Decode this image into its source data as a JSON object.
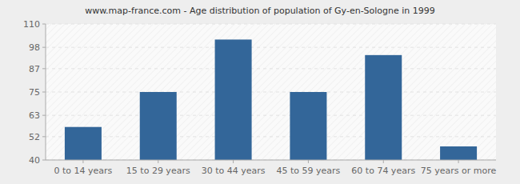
{
  "chart_data": {
    "type": "bar",
    "title": "www.map-france.com - Age distribution of population of Gy-en-Sologne in 1999",
    "categories": [
      "0 to 14 years",
      "15 to 29 years",
      "30 to 44 years",
      "45 to 59 years",
      "60 to 74 years",
      "75 years or more"
    ],
    "values": [
      57,
      75,
      102,
      75,
      94,
      47
    ],
    "color": "#336699",
    "ylim": [
      40,
      110
    ],
    "yticks": [
      40,
      52,
      63,
      75,
      87,
      98,
      110
    ],
    "grid": true
  }
}
